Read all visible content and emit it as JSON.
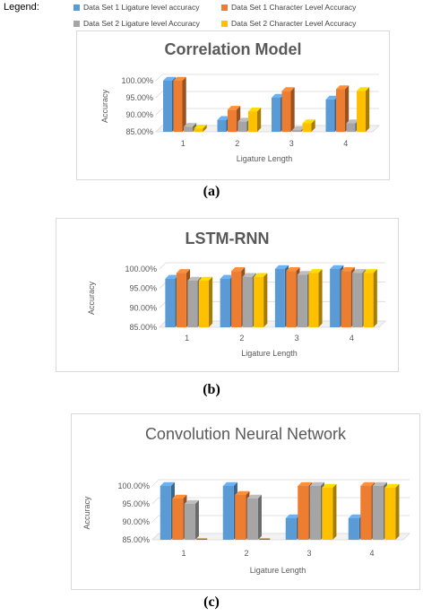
{
  "legend": {
    "title": "Legend:",
    "items": [
      {
        "label": "Data Set 1 Ligature level accuracy",
        "color": "#5b9bd5"
      },
      {
        "label": "Data Set 1 Character Level Accuracy",
        "color": "#ed7d31"
      },
      {
        "label": "Data Set 2 Ligature level Accuracy",
        "color": "#a5a5a5"
      },
      {
        "label": "Data Set 2 Character Level Accuracy",
        "color": "#ffc000"
      }
    ]
  },
  "chart_data": [
    {
      "type": "bar",
      "title": "Correlation Model",
      "caption": "(a)",
      "xlabel": "Ligature Length",
      "ylabel": "Accuracy",
      "categories": [
        "1",
        "2",
        "3",
        "4"
      ],
      "ylim": [
        85,
        100
      ],
      "yticks": [
        "85.00%",
        "90.00%",
        "95.00%",
        "100.00%"
      ],
      "series": [
        {
          "values": [
            100,
            88.5,
            95,
            94.5
          ]
        },
        {
          "values": [
            100,
            91.5,
            97,
            97.5
          ]
        },
        {
          "values": [
            86.5,
            88,
            85.5,
            87.5
          ]
        },
        {
          "values": [
            86,
            91,
            87.5,
            97
          ]
        }
      ]
    },
    {
      "type": "bar",
      "title": "LSTM-RNN",
      "caption": "(b)",
      "xlabel": "Ligature Length",
      "ylabel": "Accuracy",
      "categories": [
        "1",
        "2",
        "3",
        "4"
      ],
      "ylim": [
        85,
        100
      ],
      "yticks": [
        "85.00%",
        "90.00%",
        "95.00%",
        "100.00%"
      ],
      "series": [
        {
          "values": [
            97.5,
            97.5,
            100,
            100
          ]
        },
        {
          "values": [
            99,
            99.5,
            99.5,
            99.5
          ]
        },
        {
          "values": [
            97,
            98,
            98.5,
            99
          ]
        },
        {
          "values": [
            97,
            98,
            99,
            99
          ]
        }
      ]
    },
    {
      "type": "bar",
      "title": "Convolution Neural Network",
      "caption": "(c)",
      "xlabel": "Ligature Length",
      "ylabel": "Accuracy",
      "categories": [
        "1",
        "2",
        "3",
        "4"
      ],
      "ylim": [
        85,
        100
      ],
      "yticks": [
        "85.00%",
        "90.00%",
        "95.00%",
        "100.00%"
      ],
      "series": [
        {
          "values": [
            100,
            100,
            91,
            91
          ]
        },
        {
          "values": [
            96.5,
            97.5,
            100,
            100
          ]
        },
        {
          "values": [
            95,
            96.5,
            100,
            100
          ]
        },
        {
          "values": [
            85,
            85,
            99.5,
            99.5
          ]
        }
      ]
    }
  ]
}
